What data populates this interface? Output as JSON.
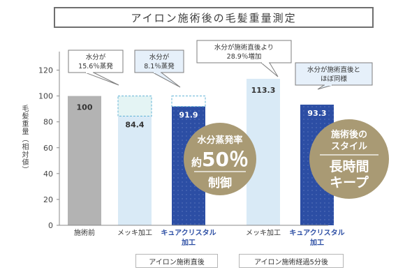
{
  "title": "アイロン施術後の毛髪重量測定",
  "chart_data": {
    "type": "bar",
    "ylabel": "毛髪重量（相対値）",
    "ylim": [
      0,
      130
    ],
    "yticks": [
      0,
      20,
      40,
      60,
      80,
      100,
      120
    ],
    "grid": false,
    "categories": [
      "施術前",
      "メッキ加工",
      "キュアクリスタル加工",
      "メッキ加工",
      "キュアクリスタル加工"
    ],
    "category_lines": [
      [
        "施術前"
      ],
      [
        "メッキ加工"
      ],
      [
        "キュアクリスタル",
        "加工"
      ],
      [
        "メッキ加工"
      ],
      [
        "キュアクリスタル",
        "加工"
      ]
    ],
    "values": [
      100,
      84.4,
      91.9,
      113.3,
      93.3
    ],
    "value_labels": [
      "100",
      "84.4",
      "91.9",
      "113.3",
      "93.3"
    ],
    "colors": [
      "#b3b3b3",
      "#d9eaf6",
      "#2c4ea4",
      "#d9eaf6",
      "#2c4ea4"
    ],
    "label_colors": [
      "#333333",
      "#333333",
      "#2c4ea4",
      "#333333",
      "#2c4ea4"
    ],
    "loss_reference": 100,
    "groups": [
      {
        "label": "アイロン施術直後",
        "from": 1,
        "to": 2
      },
      {
        "label": "アイロン施術経過5分後",
        "from": 3,
        "to": 4
      }
    ],
    "callouts": [
      {
        "bar": 1,
        "lines": [
          "水分が",
          "15.6％蒸発"
        ]
      },
      {
        "bar": 2,
        "lines": [
          "水分が",
          "8.1％蒸発"
        ]
      },
      {
        "bar": 3,
        "lines": [
          "水分が施術直後より",
          "28.9％増加"
        ]
      },
      {
        "bar": 4,
        "lines": [
          "水分が施術直後と",
          "ほぼ同様"
        ]
      }
    ],
    "badges": [
      {
        "line1": "水分蒸発率",
        "line2_prefix": "約",
        "line2_value": "50％",
        "line3": "制御"
      },
      {
        "line1": "施術後の",
        "line2": "スタイル",
        "line3": "長時間",
        "line4": "キープ"
      }
    ]
  }
}
